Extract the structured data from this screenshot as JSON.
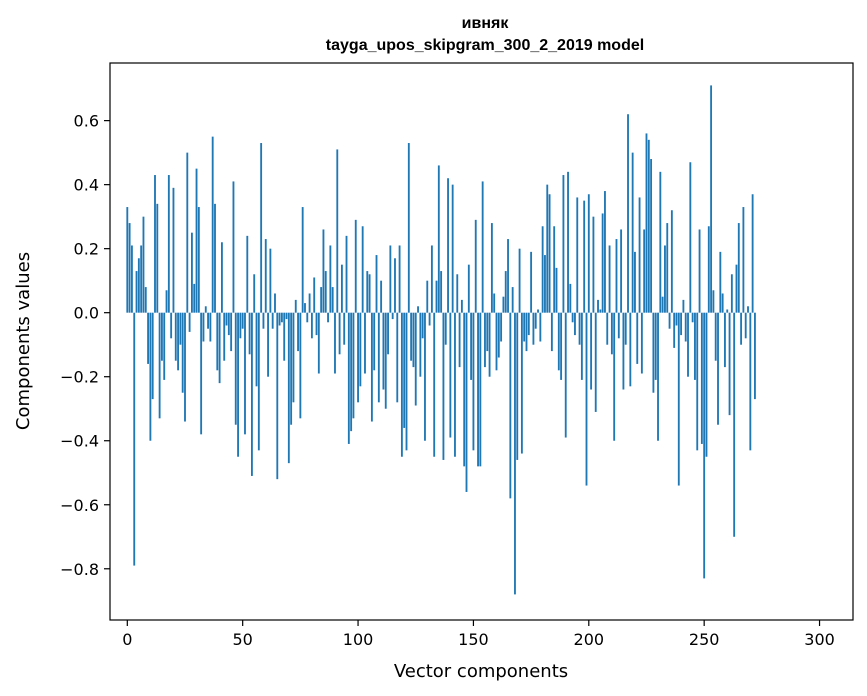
{
  "chart_data": {
    "type": "bar",
    "title": "ивняк",
    "subtitle": "tayga_upos_skipgram_300_2_2019 model",
    "xlabel": "Vector components",
    "ylabel": "Components values",
    "xlim": [
      -7.5,
      314.5
    ],
    "ylim": [
      -0.96,
      0.78
    ],
    "xticks": [
      0,
      50,
      100,
      150,
      200,
      250,
      300
    ],
    "xtick_labels": [
      "0",
      "50",
      "100",
      "150",
      "200",
      "250",
      "300"
    ],
    "yticks": [
      -0.8,
      -0.6,
      -0.4,
      -0.2,
      0.0,
      0.2,
      0.4,
      0.6
    ],
    "ytick_labels": [
      "−0.8",
      "−0.6",
      "−0.4",
      "−0.2",
      "0.0",
      "0.2",
      "0.4",
      "0.6"
    ],
    "bar_color": "#1f77b4",
    "grid": false,
    "values": [
      0.33,
      0.28,
      0.21,
      -0.79,
      0.13,
      0.17,
      0.21,
      0.3,
      0.08,
      -0.16,
      -0.4,
      -0.27,
      0.43,
      0.34,
      -0.33,
      -0.15,
      -0.21,
      0.07,
      0.43,
      -0.08,
      0.39,
      -0.15,
      -0.18,
      -0.1,
      -0.25,
      -0.34,
      0.5,
      -0.06,
      0.25,
      0.09,
      0.45,
      0.33,
      -0.38,
      -0.09,
      0.02,
      -0.05,
      -0.09,
      0.55,
      0.34,
      -0.18,
      -0.22,
      0.22,
      -0.15,
      -0.04,
      -0.07,
      -0.12,
      0.41,
      -0.35,
      -0.45,
      -0.08,
      -0.05,
      -0.38,
      0.24,
      -0.13,
      -0.51,
      0.12,
      -0.23,
      -0.43,
      0.53,
      -0.05,
      0.23,
      -0.2,
      0.2,
      -0.05,
      0.06,
      -0.52,
      -0.04,
      -0.03,
      -0.15,
      -0.02,
      -0.47,
      -0.35,
      -0.28,
      0.04,
      -0.12,
      -0.33,
      0.33,
      0.03,
      -0.03,
      0.06,
      -0.08,
      0.11,
      -0.07,
      -0.19,
      0.08,
      0.26,
      0.13,
      -0.03,
      0.21,
      0.08,
      -0.19,
      0.51,
      -0.13,
      0.15,
      -0.1,
      0.24,
      -0.41,
      -0.37,
      -0.33,
      0.29,
      -0.28,
      -0.23,
      0.27,
      -0.19,
      0.13,
      0.12,
      -0.34,
      -0.18,
      0.18,
      -0.28,
      0.1,
      -0.24,
      -0.3,
      -0.13,
      0.21,
      -0.02,
      0.17,
      -0.28,
      0.21,
      -0.45,
      -0.36,
      -0.43,
      0.53,
      -0.15,
      -0.17,
      -0.29,
      0.02,
      -0.2,
      -0.08,
      -0.4,
      0.1,
      -0.04,
      0.21,
      -0.45,
      0.1,
      0.46,
      0.13,
      -0.46,
      -0.1,
      0.42,
      -0.39,
      0.4,
      -0.45,
      0.12,
      -0.17,
      0.04,
      -0.48,
      -0.56,
      0.15,
      -0.21,
      -0.43,
      0.29,
      -0.48,
      -0.48,
      0.41,
      -0.17,
      -0.12,
      -0.2,
      0.28,
      0.06,
      -0.18,
      -0.14,
      -0.09,
      0.05,
      0.13,
      0.23,
      -0.58,
      0.08,
      -0.88,
      -0.46,
      0.2,
      -0.44,
      -0.09,
      -0.12,
      -0.07,
      0.19,
      -0.1,
      -0.05,
      0.01,
      -0.09,
      0.27,
      0.18,
      0.4,
      0.37,
      -0.12,
      0.27,
      0.14,
      -0.18,
      -0.21,
      0.43,
      -0.39,
      0.44,
      0.09,
      -0.03,
      -0.07,
      0.36,
      -0.1,
      -0.21,
      0.35,
      -0.54,
      0.37,
      -0.24,
      0.3,
      -0.31,
      0.04,
      0.01,
      0.31,
      0.38,
      -0.1,
      0.21,
      -0.13,
      -0.4,
      0.23,
      -0.08,
      0.26,
      -0.24,
      -0.1,
      0.62,
      -0.23,
      0.5,
      0.19,
      -0.16,
      0.36,
      -0.19,
      0.26,
      0.56,
      0.54,
      0.48,
      -0.25,
      -0.21,
      -0.4,
      0.44,
      0.05,
      0.21,
      0.28,
      -0.05,
      0.32,
      -0.11,
      -0.04,
      -0.54,
      -0.07,
      0.04,
      -0.09,
      -0.2,
      0.47,
      -0.03,
      -0.21,
      -0.43,
      0.26,
      -0.41,
      -0.83,
      -0.45,
      0.27,
      0.71,
      0.07,
      -0.15,
      -0.35,
      0.19,
      0.06,
      -0.17,
      0.01,
      -0.32,
      0.12,
      -0.7,
      0.15,
      0.28,
      -0.1,
      0.33,
      -0.08,
      0.02,
      -0.43,
      0.37,
      -0.27
    ]
  }
}
